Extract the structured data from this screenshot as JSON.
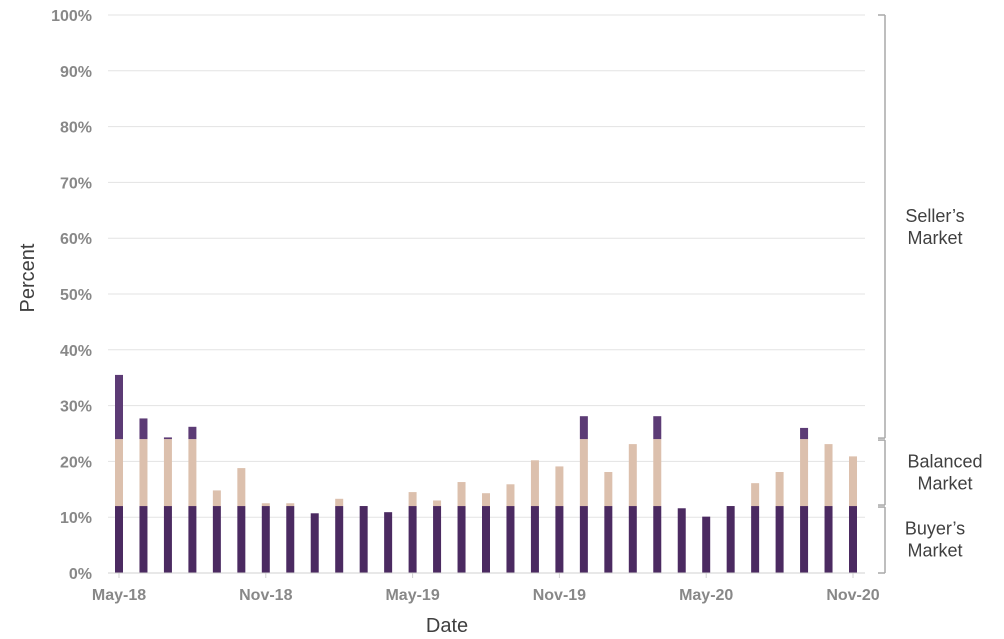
{
  "chart_data": {
    "type": "bar",
    "stacked": true,
    "xlabel": "Date",
    "ylabel": "Percent",
    "ylim": [
      0,
      100
    ],
    "y_tick_labels": [
      "0%",
      "10%",
      "20%",
      "30%",
      "40%",
      "50%",
      "60%",
      "70%",
      "80%",
      "90%",
      "100%"
    ],
    "x_tick_labels": [
      "May-18",
      "Nov-18",
      "May-19",
      "Nov-19",
      "May-20",
      "Nov-20"
    ],
    "grid": true,
    "categories": [
      "May-18",
      "Jun-18",
      "Jul-18",
      "Aug-18",
      "Sep-18",
      "Oct-18",
      "Nov-18",
      "Dec-18",
      "Jan-19",
      "Feb-19",
      "Mar-19",
      "Apr-19",
      "May-19",
      "Jun-19",
      "Jul-19",
      "Aug-19",
      "Sep-19",
      "Oct-19",
      "Nov-19",
      "Dec-19",
      "Jan-20",
      "Feb-20",
      "Mar-20",
      "Apr-20",
      "May-20",
      "Jun-20",
      "Jul-20",
      "Aug-20",
      "Sep-20",
      "Oct-20",
      "Nov-20"
    ],
    "totals": [
      35.5,
      27.7,
      24.3,
      26.2,
      14.8,
      18.8,
      12.5,
      12.5,
      10.7,
      13.3,
      12.0,
      10.9,
      14.5,
      13.0,
      16.3,
      14.3,
      15.9,
      20.2,
      19.1,
      28.1,
      18.1,
      23.1,
      28.1,
      11.6,
      10.1,
      12.0,
      16.1,
      18.1,
      26.0,
      23.1,
      20.9
    ],
    "series": [
      {
        "name": "Buyer's Market",
        "color": "#4b2a61"
      },
      {
        "name": "Balanced Market",
        "color": "#dcc0ad"
      },
      {
        "name": "Seller's Market",
        "color": "#5c3b75"
      }
    ],
    "thresholds": [
      12.0,
      24.0
    ],
    "regions": [
      {
        "lines": [
          "Seller’s",
          "Market"
        ],
        "range": [
          24,
          100
        ]
      },
      {
        "lines": [
          "Balanced",
          "Market"
        ],
        "range": [
          12,
          24
        ]
      },
      {
        "lines": [
          "Buyer’s",
          "Market"
        ],
        "range": [
          0,
          12
        ]
      }
    ]
  }
}
